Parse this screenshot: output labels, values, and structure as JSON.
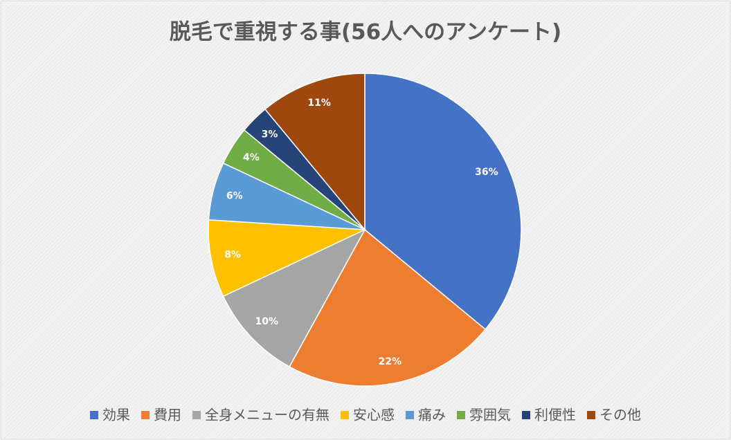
{
  "chart_data": {
    "type": "pie",
    "title": "脱毛で重視する事(56人へのアンケート)",
    "categories": [
      "効果",
      "費用",
      "全身メニューの有無",
      "安心感",
      "痛み",
      "雰囲気",
      "利便性",
      "その他"
    ],
    "values": [
      36,
      22,
      10,
      8,
      6,
      4,
      3,
      11
    ],
    "value_labels": [
      "36%",
      "22%",
      "10%",
      "8%",
      "6%",
      "4%",
      "3%",
      "11%"
    ],
    "colors": [
      "#4472c4",
      "#ed7d31",
      "#a5a5a5",
      "#ffc000",
      "#5b9bd5",
      "#70ad47",
      "#264478",
      "#9e480e"
    ],
    "legend": "bottom"
  }
}
